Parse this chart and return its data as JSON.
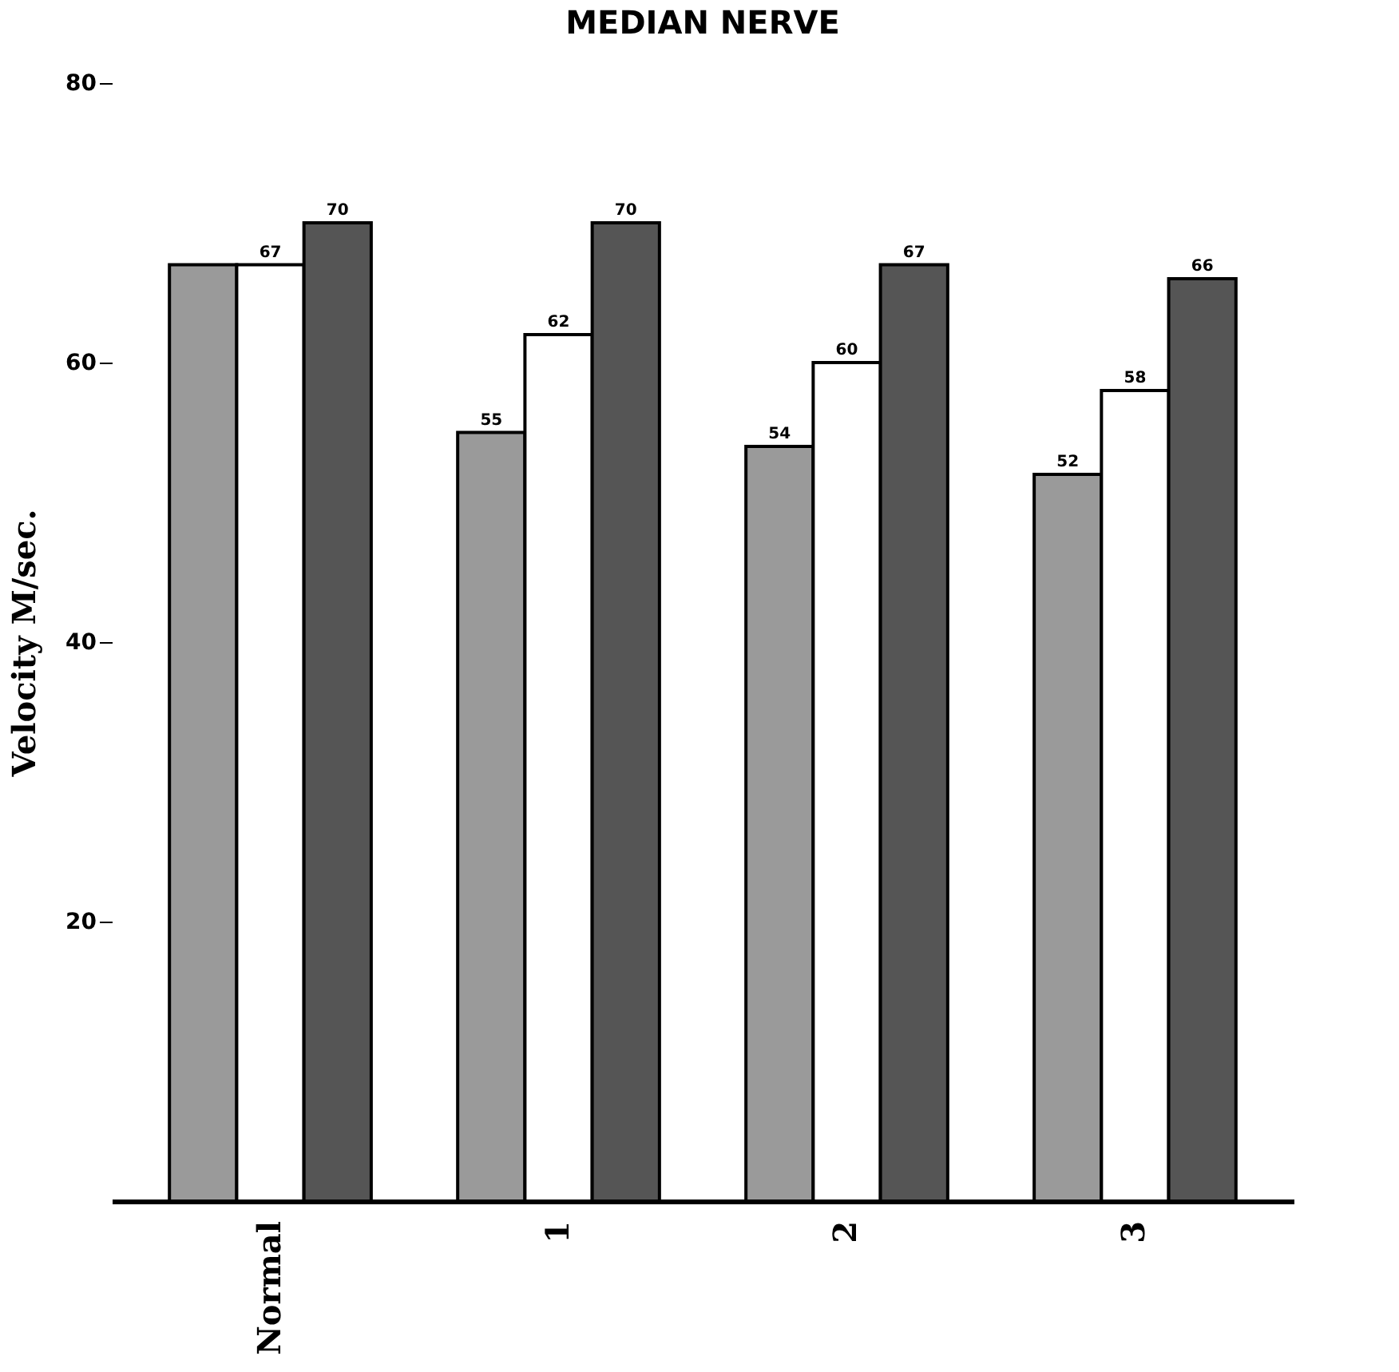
{
  "chart_data": {
    "type": "bar",
    "title": "MEDIAN NERVE",
    "ylabel": "Velocity  M/sec.",
    "categories": [
      "Normal",
      "1",
      "2",
      "3"
    ],
    "series": [
      {
        "color": "#9a9a9a",
        "values": [
          67,
          55,
          54,
          52
        ],
        "value_labels": [
          null,
          "55",
          "54",
          "52"
        ]
      },
      {
        "color": "#ffffff",
        "values": [
          67,
          62,
          60,
          58
        ],
        "value_labels": [
          "67",
          "62",
          "60",
          "58"
        ]
      },
      {
        "color": "#555555",
        "values": [
          70,
          70,
          67,
          66
        ],
        "value_labels": [
          "70",
          "70",
          "67",
          "66"
        ]
      }
    ],
    "ylim": [
      0,
      80
    ],
    "yticks": [
      20,
      40,
      60,
      80
    ],
    "grid": false,
    "legend": false
  }
}
